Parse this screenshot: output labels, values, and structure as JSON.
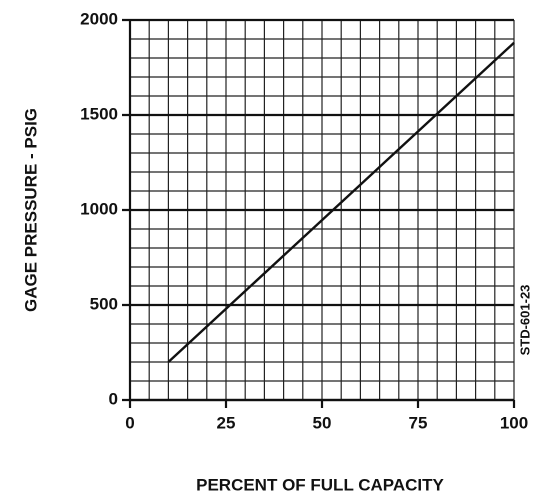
{
  "chart_data": {
    "type": "line",
    "xlabel": "PERCENT OF FULL CAPACITY",
    "ylabel": "GAGE PRESSURE - PSIG",
    "annotation": "STD-601-23",
    "x": [
      10,
      100
    ],
    "series": [
      {
        "color": "#111111",
        "values": [
          200,
          1880
        ]
      }
    ],
    "xlim": [
      0,
      100
    ],
    "xticks": [
      0,
      25,
      50,
      75,
      100
    ],
    "ylim": [
      0,
      2000
    ],
    "yticks": [
      0,
      500,
      1000,
      1500,
      2000
    ],
    "grid": true,
    "minor_grid": {
      "x": 5,
      "y": 100
    }
  }
}
